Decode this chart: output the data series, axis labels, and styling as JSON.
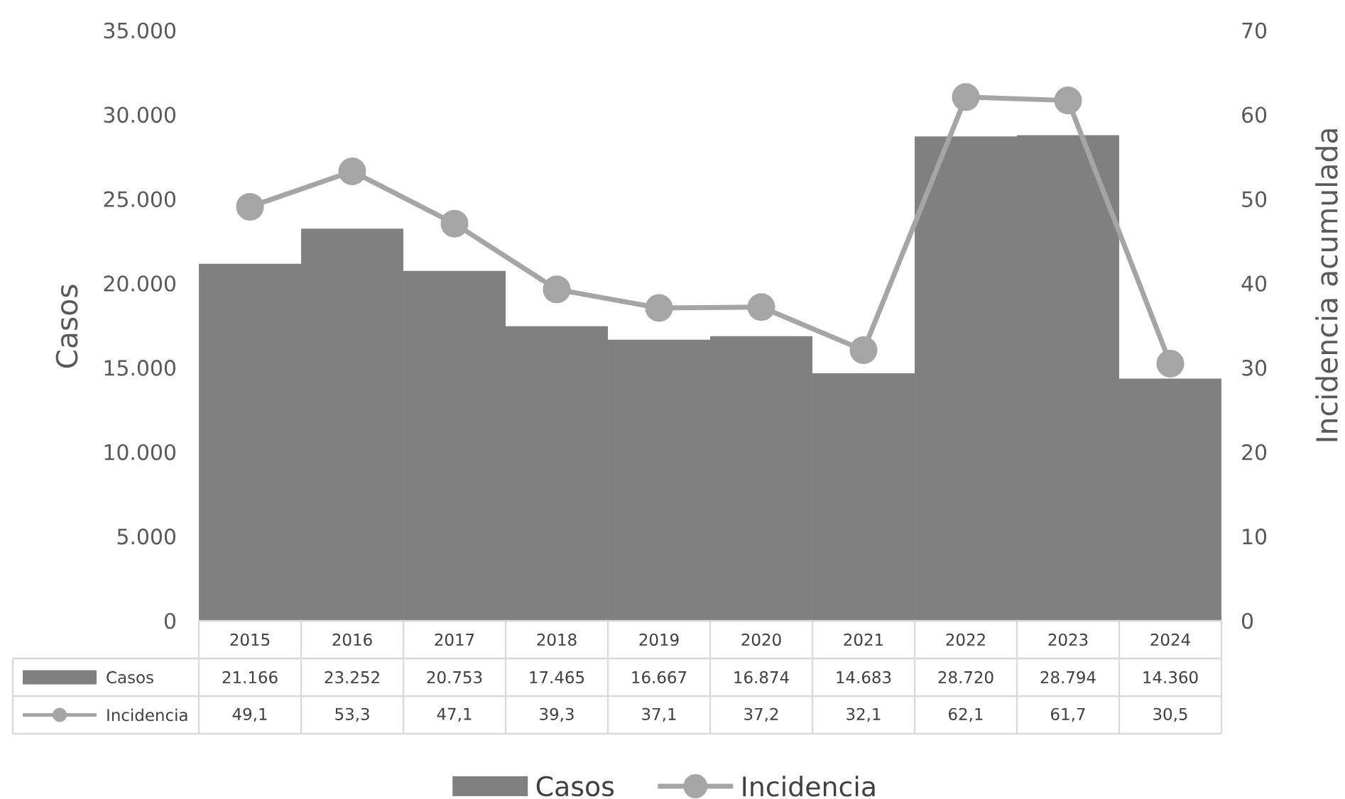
{
  "chart_data": {
    "type": "bar",
    "ylabel": "Casos",
    "y2label": "Incidencia acumulada",
    "categories": [
      "2015",
      "2016",
      "2017",
      "2018",
      "2019",
      "2020",
      "2021",
      "2022",
      "2023",
      "2024"
    ],
    "ylim": [
      0,
      35000
    ],
    "yticks": [
      0,
      {
        "value": 5000,
        "label": "5.000"
      },
      {
        "value": 10000,
        "label": "10.000"
      },
      {
        "value": 15000,
        "label": "15.000"
      },
      {
        "value": 20000,
        "label": "20.000"
      },
      {
        "value": 25000,
        "label": "25.000"
      },
      {
        "value": 30000,
        "label": "30.000"
      },
      {
        "value": 35000,
        "label": "35.000"
      }
    ],
    "y2lim": [
      0,
      70
    ],
    "y2ticks": [
      0,
      10,
      20,
      30,
      40,
      50,
      60,
      70
    ],
    "marker": "circle",
    "legend": "bottom",
    "series": [
      {
        "name": "Casos",
        "color": "#808080",
        "values": [
          21166,
          23252,
          20753,
          17465,
          16667,
          16874,
          14683,
          28720,
          28794,
          14360
        ],
        "value_labels": [
          "21.166",
          "23.252",
          "20.753",
          "17.465",
          "16.667",
          "16.874",
          "14.683",
          "28.720",
          "28.794",
          "14.360"
        ]
      },
      {
        "name": "Incidencia",
        "type": "line",
        "axis": "y2",
        "color": "#a5a5a5",
        "values": [
          49.1,
          53.3,
          47.1,
          39.3,
          37.1,
          37.2,
          32.1,
          62.1,
          61.7,
          30.5
        ],
        "value_labels": [
          "49,1",
          "53,3",
          "47,1",
          "39,3",
          "37,1",
          "37,2",
          "32,1",
          "62,1",
          "61,7",
          "30,5"
        ]
      }
    ]
  }
}
